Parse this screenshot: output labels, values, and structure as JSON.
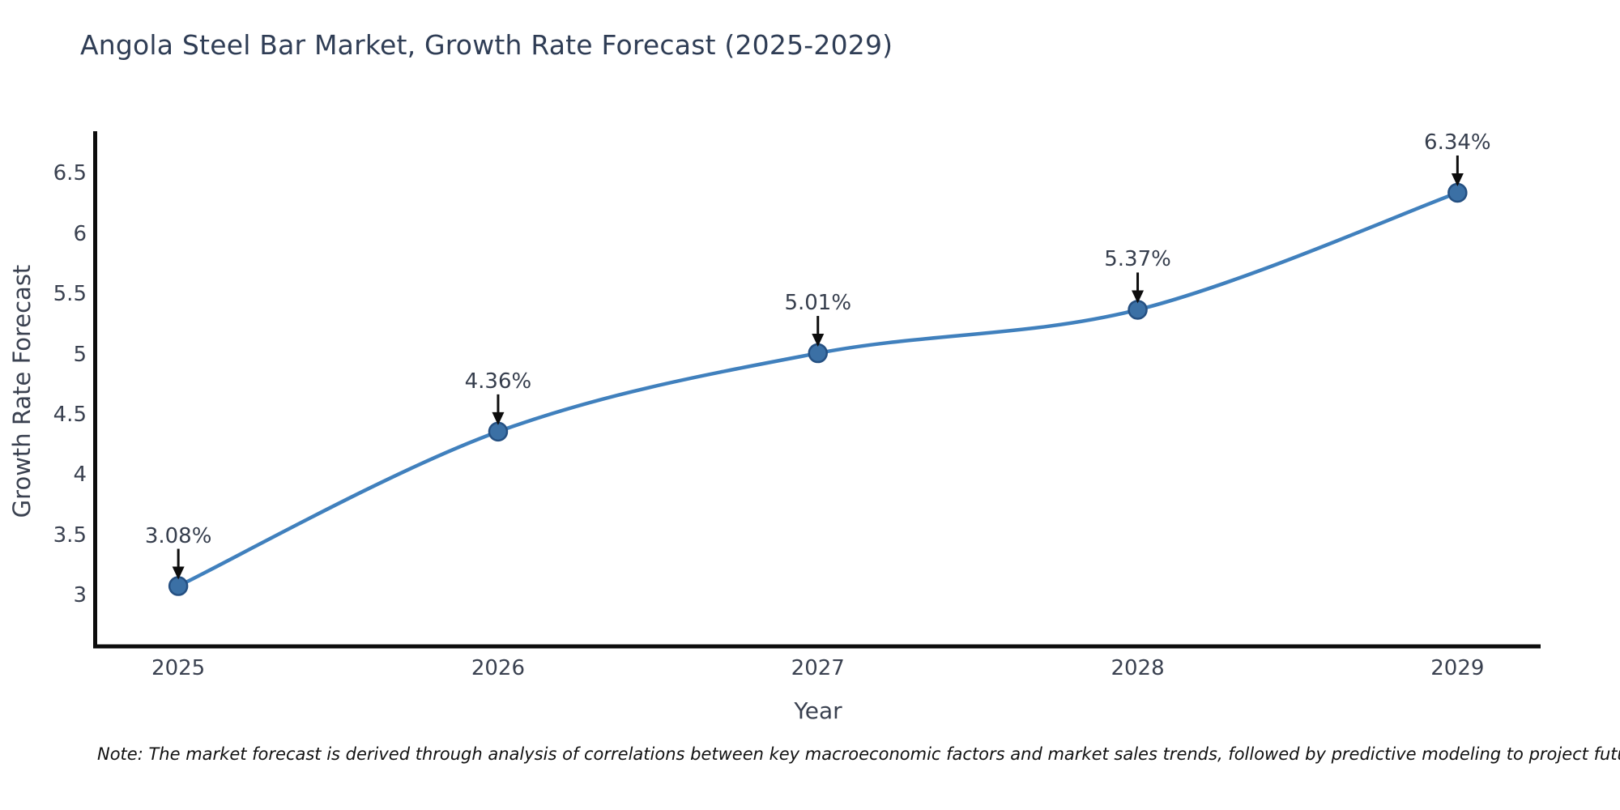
{
  "footnote": "Note: The market forecast is derived through analysis of correlations between key macroeconomic factors and market sales trends, followed by predictive modeling to project future sales",
  "chart_data": {
    "type": "line",
    "title": "Angola Steel Bar Market, Growth Rate Forecast (2025-2029)",
    "xlabel": "Year",
    "ylabel": "Growth Rate Forecast",
    "x": [
      2025,
      2026,
      2027,
      2028,
      2029
    ],
    "series": [
      {
        "name": "Growth Rate Forecast",
        "values": [
          3.08,
          4.36,
          5.01,
          5.37,
          6.34
        ]
      }
    ],
    "point_labels": [
      "3.08%",
      "4.36%",
      "5.01%",
      "5.37%",
      "6.34%"
    ],
    "xtick_labels": [
      "2025",
      "2026",
      "2027",
      "2028",
      "2029"
    ],
    "ytick_labels": [
      "3",
      "3.5",
      "4",
      "4.5",
      "5",
      "5.5",
      "6",
      "6.5"
    ],
    "ytick_values": [
      3,
      3.5,
      4,
      4.5,
      5,
      5.5,
      6,
      6.5
    ],
    "xlim": [
      2024.74,
      2029.26
    ],
    "ylim": [
      2.58,
      6.85
    ],
    "grid": false,
    "legend": "none",
    "line_shape": "spline",
    "colors": {
      "line": "#4080bd",
      "marker_fill": "#3b70a5",
      "marker_edge": "#255082",
      "arrow": "#0d0d0d",
      "axis_spine": "#0d0d0d"
    }
  }
}
